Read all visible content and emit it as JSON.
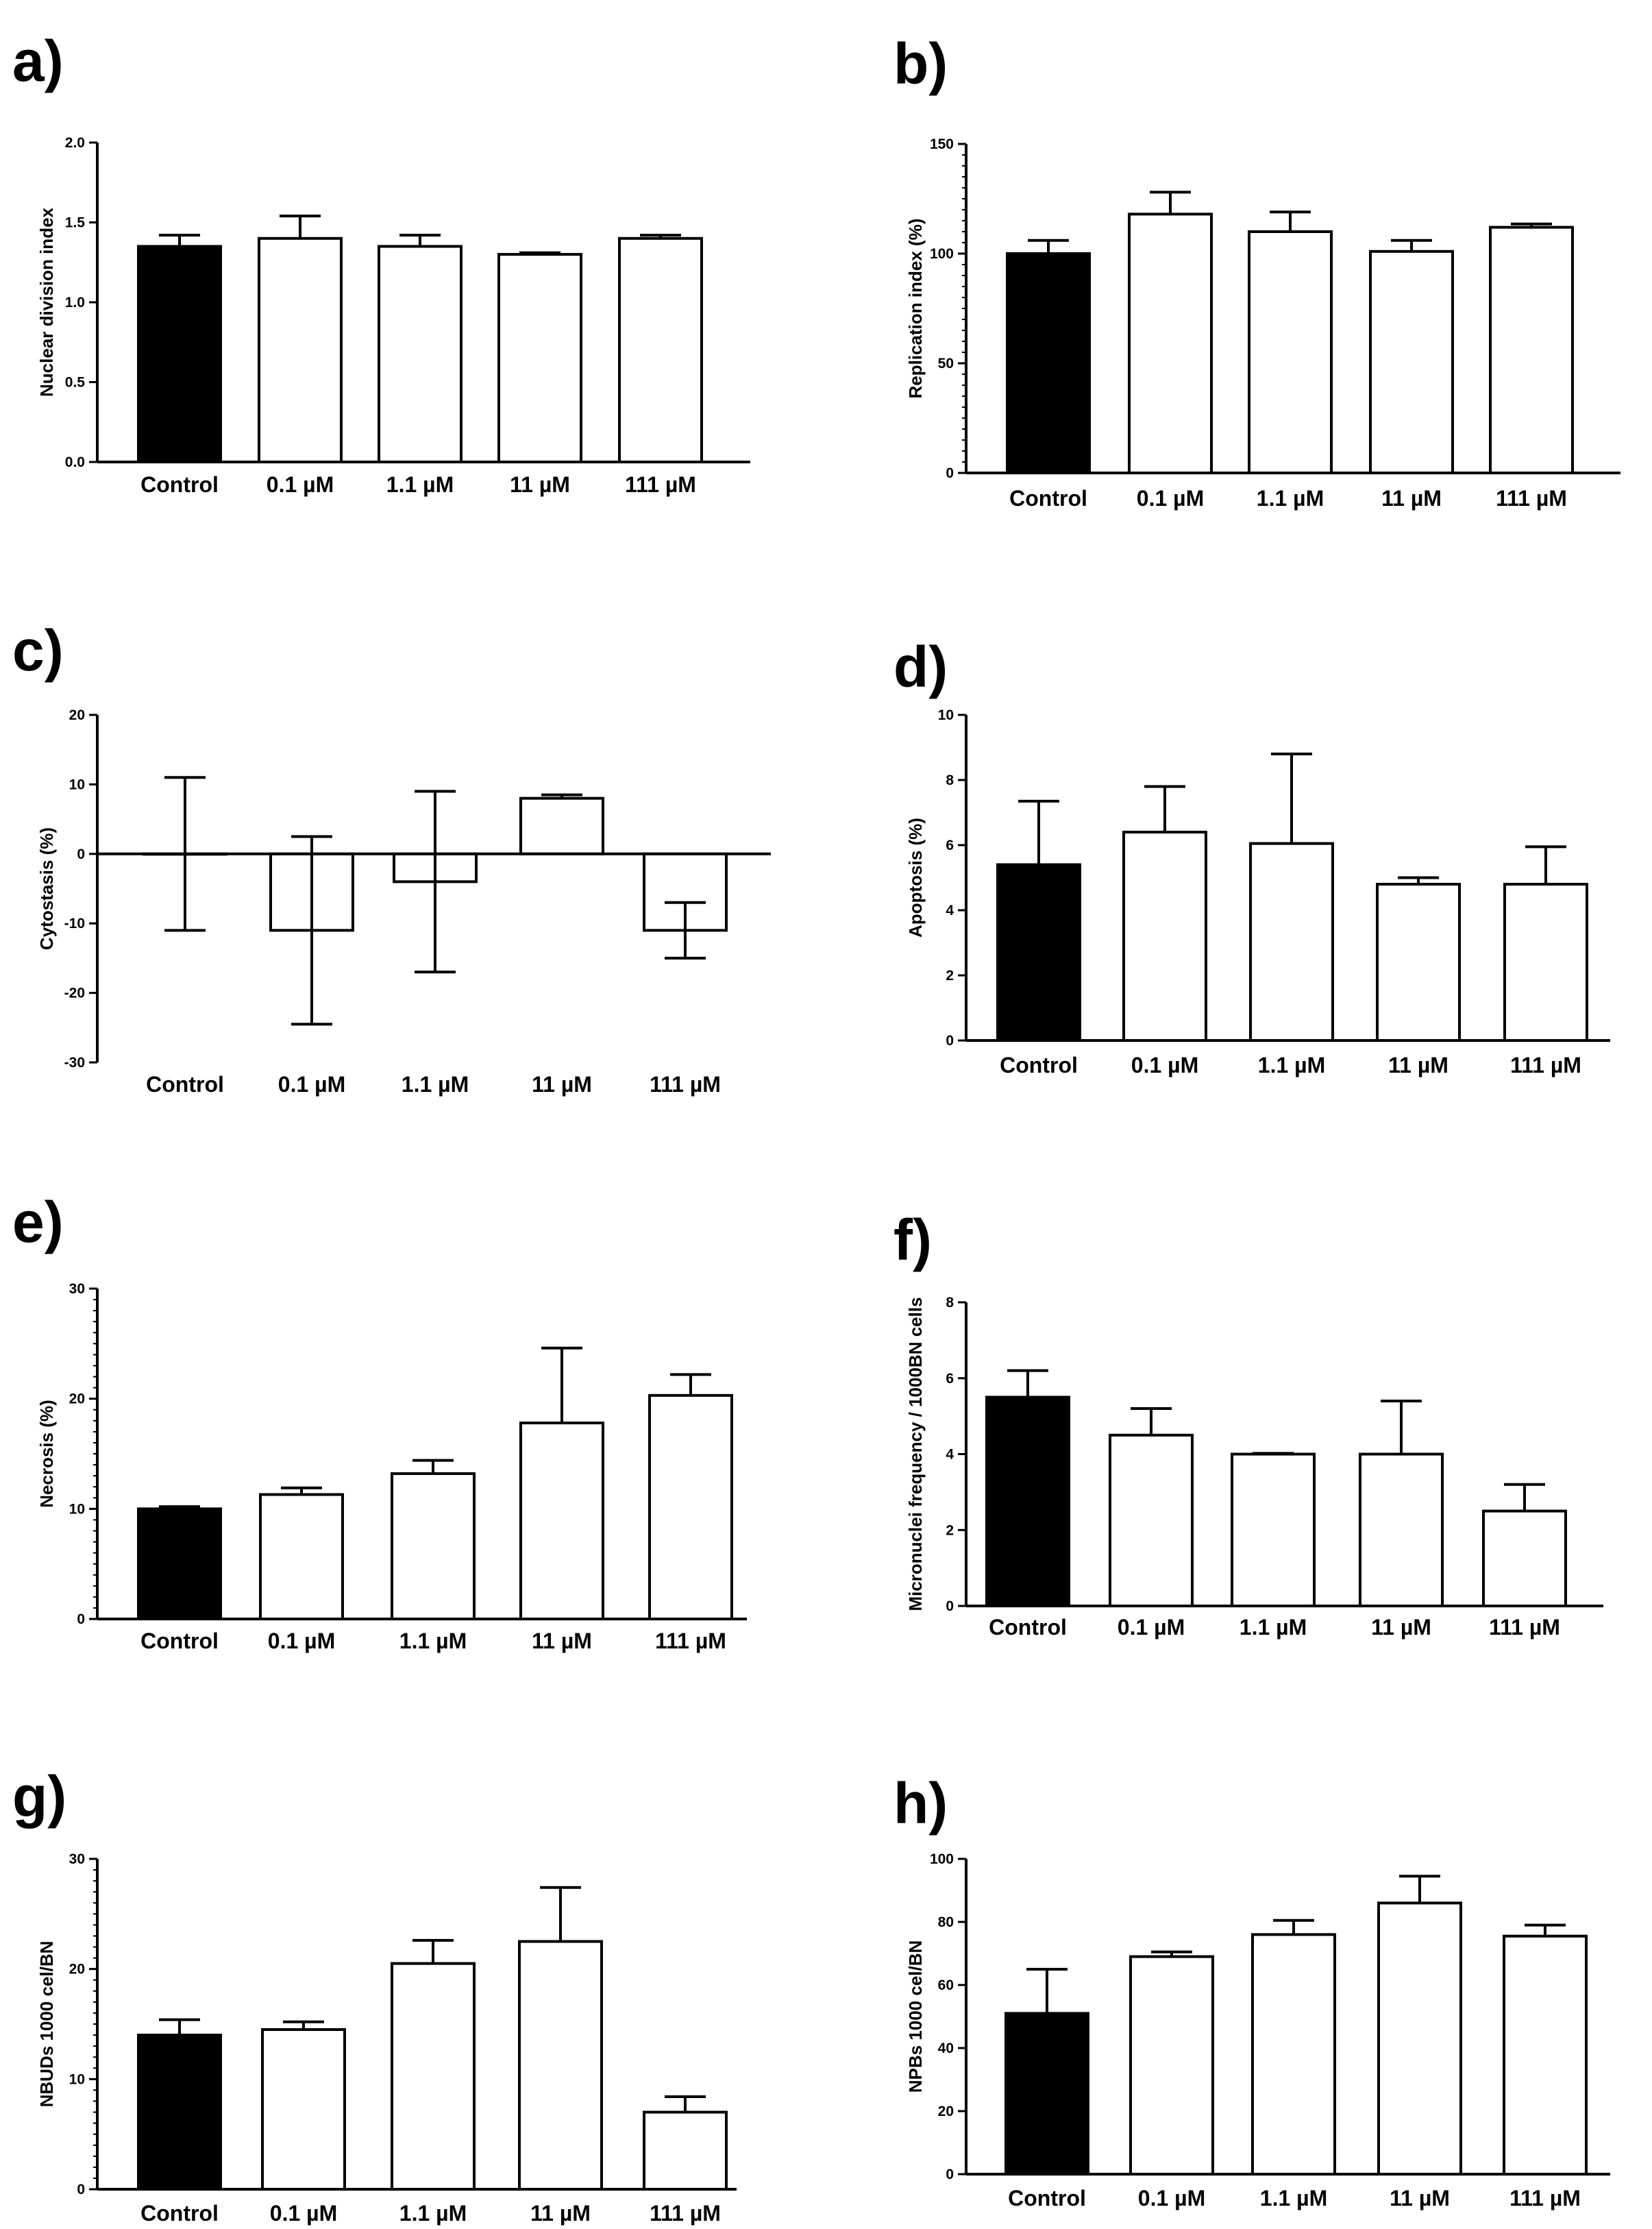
{
  "chart_data": [
    {
      "panel": "a)",
      "type": "bar",
      "ylabel": "Nuclear division index",
      "categories": [
        "Control",
        "0.1 µM",
        "1.1 µM",
        "11 µM",
        "111 µM"
      ],
      "values": [
        1.35,
        1.4,
        1.35,
        1.3,
        1.4
      ],
      "errors": [
        0.07,
        0.14,
        0.07,
        0.01,
        0.02
      ],
      "ylim": [
        0,
        2
      ],
      "yticks": [
        0,
        0.5,
        1,
        1.5,
        2
      ],
      "yticklabels": [
        "0.0",
        "0.5",
        "1.0",
        "1.5",
        "2.0"
      ],
      "bar_colors": [
        "#000000",
        "#ffffff",
        "#ffffff",
        "#ffffff",
        "#ffffff"
      ],
      "minor_ticks": false
    },
    {
      "panel": "b)",
      "type": "bar",
      "ylabel": "Replication index (%)",
      "categories": [
        "Control",
        "0.1 µM",
        "1.1 µM",
        "11 µM",
        "111 µM"
      ],
      "values": [
        100,
        118,
        110,
        101,
        112
      ],
      "errors": [
        6,
        10,
        9,
        5,
        1.5
      ],
      "ylim": [
        0,
        150
      ],
      "yticks": [
        0,
        50,
        100,
        150
      ],
      "yticklabels": [
        "0",
        "50",
        "100",
        "150"
      ],
      "bar_colors": [
        "#000000",
        "#ffffff",
        "#ffffff",
        "#ffffff",
        "#ffffff"
      ],
      "minor_ticks": true
    },
    {
      "panel": "c)",
      "type": "bar",
      "ylabel": "Cytostasis (%)",
      "categories": [
        "Control",
        "0.1 µM",
        "1.1 µM",
        "11 µM",
        "111 µM"
      ],
      "values": [
        0,
        -11,
        -4,
        8,
        -11
      ],
      "errors": [
        11,
        13.5,
        13,
        0.5,
        4
      ],
      "ylim": [
        -30,
        20
      ],
      "yticks": [
        -30,
        -20,
        -10,
        0,
        10,
        20
      ],
      "yticklabels": [
        "-30",
        "-20",
        "-10",
        "0",
        "10",
        "20"
      ],
      "bar_colors": [
        "#000000",
        "#ffffff",
        "#ffffff",
        "#ffffff",
        "#ffffff"
      ],
      "minor_ticks": false
    },
    {
      "panel": "d)",
      "type": "bar",
      "ylabel": "Apoptosis (%)",
      "categories": [
        "Control",
        "0.1 µM",
        "1.1 µM",
        "11 µM",
        "111 µM"
      ],
      "values": [
        5.4,
        6.4,
        6.05,
        4.8,
        4.8
      ],
      "errors": [
        1.95,
        1.4,
        2.75,
        0.2,
        1.15
      ],
      "ylim": [
        0,
        10
      ],
      "yticks": [
        0,
        2,
        4,
        6,
        8,
        10
      ],
      "yticklabels": [
        "0",
        "2",
        "4",
        "6",
        "8",
        "10"
      ],
      "bar_colors": [
        "#000000",
        "#ffffff",
        "#ffffff",
        "#ffffff",
        "#ffffff"
      ],
      "minor_ticks": false
    },
    {
      "panel": "e)",
      "type": "bar",
      "ylabel": "Necrosis (%)",
      "categories": [
        "Control",
        "0.1 µM",
        "1.1 µM",
        "11 µM",
        "111 µM"
      ],
      "values": [
        10,
        11.3,
        13.2,
        17.8,
        20.3
      ],
      "errors": [
        0.2,
        0.6,
        1.2,
        6.8,
        1.9
      ],
      "ylim": [
        0,
        30
      ],
      "yticks": [
        0,
        10,
        20,
        30
      ],
      "yticklabels": [
        "0",
        "10",
        "20",
        "30"
      ],
      "bar_colors": [
        "#000000",
        "#ffffff",
        "#ffffff",
        "#ffffff",
        "#ffffff"
      ],
      "minor_ticks": true
    },
    {
      "panel": "f)",
      "type": "bar",
      "ylabel": "Micronuclei frequency / 1000BN cells",
      "categories": [
        "Control",
        "0.1 µM",
        "1.1 µM",
        "11 µM",
        "111 µM"
      ],
      "values": [
        5.5,
        4.5,
        4,
        4,
        2.5
      ],
      "errors": [
        0.7,
        0.7,
        0.02,
        1.4,
        0.7
      ],
      "ylim": [
        0,
        8
      ],
      "yticks": [
        0,
        2,
        4,
        6,
        8
      ],
      "yticklabels": [
        "0",
        "2",
        "4",
        "6",
        "8"
      ],
      "bar_colors": [
        "#000000",
        "#ffffff",
        "#ffffff",
        "#ffffff",
        "#ffffff"
      ],
      "minor_ticks": false
    },
    {
      "panel": "g)",
      "type": "bar",
      "ylabel": "NBUDs 1000 cel/BN",
      "categories": [
        "Control",
        "0.1 µM",
        "1.1 µM",
        "11 µM",
        "111 µM"
      ],
      "values": [
        14,
        14.5,
        20.5,
        22.5,
        7
      ],
      "errors": [
        1.4,
        0.7,
        2.1,
        4.9,
        1.4
      ],
      "ylim": [
        0,
        30
      ],
      "yticks": [
        0,
        10,
        20,
        30
      ],
      "yticklabels": [
        "0",
        "10",
        "20",
        "30"
      ],
      "bar_colors": [
        "#000000",
        "#ffffff",
        "#ffffff",
        "#ffffff",
        "#ffffff"
      ],
      "minor_ticks": true
    },
    {
      "panel": "h)",
      "type": "bar",
      "ylabel": "NPBs 1000 cel/BN",
      "categories": [
        "Control",
        "0.1 µM",
        "1.1 µM",
        "11 µM",
        "111 µM"
      ],
      "values": [
        51,
        69,
        76,
        86,
        75.5
      ],
      "errors": [
        14,
        1.5,
        4.5,
        8.5,
        3.5
      ],
      "ylim": [
        0,
        100
      ],
      "yticks": [
        0,
        20,
        40,
        60,
        80,
        100
      ],
      "yticklabels": [
        "0",
        "20",
        "40",
        "60",
        "80",
        "100"
      ],
      "bar_colors": [
        "#000000",
        "#ffffff",
        "#ffffff",
        "#ffffff",
        "#ffffff"
      ],
      "minor_ticks": false
    }
  ]
}
